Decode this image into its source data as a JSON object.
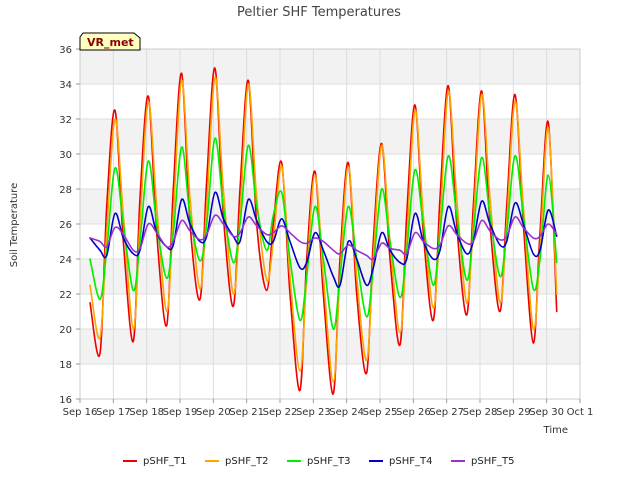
{
  "chart_data": {
    "type": "line",
    "title": "Peltier SHF Temperatures",
    "xlabel": "Time",
    "ylabel": "Soil Temperature",
    "badge": "VR_met",
    "ylim": [
      16,
      36
    ],
    "yticks": [
      16,
      18,
      20,
      22,
      24,
      26,
      28,
      30,
      32,
      34,
      36
    ],
    "xlim": [
      "Sep 16",
      "Oct 1"
    ],
    "xtick_labels": [
      "Sep 16",
      "Sep 17",
      "Sep 18",
      "Sep 19",
      "Sep 20",
      "Sep 21",
      "Sep 22",
      "Sep 23",
      "Sep 24",
      "Sep 25",
      "Sep 26",
      "Sep 27",
      "Sep 28",
      "Sep 29",
      "Sep 30",
      "Oct 1"
    ],
    "grid": true,
    "legend_position": "bottom",
    "x_days": [
      16.3,
      16.6,
      16.8,
      17.05,
      17.3,
      17.6,
      17.8,
      18.05,
      18.3,
      18.6,
      18.8,
      19.05,
      19.3,
      19.6,
      19.8,
      20.05,
      20.3,
      20.6,
      20.8,
      21.05,
      21.3,
      21.6,
      21.8,
      22.05,
      22.3,
      22.6,
      22.8,
      23.05,
      23.3,
      23.6,
      23.8,
      24.05,
      24.3,
      24.6,
      24.8,
      25.05,
      25.3,
      25.6,
      25.8,
      26.05,
      26.3,
      26.6,
      26.8,
      27.05,
      27.3,
      27.6,
      27.8,
      28.05,
      28.3,
      28.6,
      28.8,
      29.05,
      29.3,
      29.6,
      29.8,
      30.05,
      30.3
    ],
    "series": [
      {
        "name": "pSHF_T1",
        "color": "#ee0000",
        "values": [
          21.5,
          18.6,
          27.0,
          32.5,
          25.0,
          19.3,
          27.5,
          33.3,
          25.5,
          20.2,
          28.0,
          34.6,
          26.0,
          21.7,
          28.5,
          34.9,
          26.5,
          21.3,
          28.0,
          34.2,
          26.0,
          22.2,
          26.0,
          29.5,
          22.0,
          16.5,
          24.0,
          29.0,
          22.0,
          16.3,
          24.0,
          29.5,
          22.0,
          17.5,
          25.0,
          30.6,
          24.0,
          19.1,
          26.5,
          32.8,
          25.5,
          20.5,
          27.5,
          33.9,
          26.0,
          20.8,
          27.0,
          33.6,
          26.0,
          21.0,
          27.0,
          33.4,
          26.0,
          19.2,
          25.5,
          31.8,
          21.0
        ]
      },
      {
        "name": "pSHF_T2",
        "color": "#ffa500",
        "values": [
          22.5,
          19.5,
          25.5,
          32.0,
          26.5,
          20.0,
          26.0,
          33.0,
          27.0,
          21.0,
          26.5,
          34.2,
          27.5,
          22.3,
          27.0,
          34.4,
          28.0,
          22.0,
          26.5,
          34.0,
          27.5,
          22.8,
          25.0,
          29.3,
          23.0,
          17.6,
          23.0,
          28.8,
          23.0,
          17.0,
          23.0,
          29.3,
          23.0,
          18.2,
          24.0,
          30.5,
          25.0,
          19.8,
          25.0,
          32.5,
          26.5,
          21.2,
          26.0,
          33.6,
          27.5,
          21.5,
          26.0,
          33.4,
          27.5,
          21.5,
          26.0,
          33.0,
          27.0,
          20.0,
          24.5,
          31.5,
          22.0
        ]
      },
      {
        "name": "pSHF_T3",
        "color": "#00ee00",
        "values": [
          24.0,
          21.7,
          24.5,
          29.2,
          26.0,
          22.2,
          25.0,
          29.6,
          26.0,
          22.9,
          25.5,
          30.4,
          26.5,
          23.9,
          26.0,
          30.9,
          27.0,
          23.8,
          26.0,
          30.5,
          27.0,
          24.5,
          26.5,
          27.8,
          24.0,
          20.5,
          23.0,
          27.0,
          24.0,
          20.0,
          23.0,
          27.0,
          24.0,
          20.7,
          23.5,
          28.0,
          25.0,
          21.8,
          24.5,
          29.1,
          26.0,
          22.5,
          25.5,
          29.9,
          26.5,
          22.8,
          25.5,
          29.8,
          26.5,
          23.0,
          25.5,
          29.9,
          26.5,
          22.3,
          24.0,
          28.8,
          23.8
        ]
      },
      {
        "name": "pSHF_T4",
        "color": "#0000cc",
        "values": [
          25.2,
          24.5,
          24.2,
          26.6,
          25.2,
          24.3,
          24.5,
          27.0,
          25.5,
          24.7,
          24.8,
          27.4,
          26.0,
          25.0,
          25.3,
          27.8,
          26.3,
          25.3,
          25.0,
          27.4,
          26.2,
          25.0,
          25.0,
          26.3,
          25.0,
          23.5,
          23.8,
          25.5,
          24.5,
          23.0,
          22.5,
          25.0,
          24.0,
          22.5,
          23.5,
          25.5,
          24.5,
          23.8,
          24.0,
          26.6,
          25.0,
          24.0,
          24.5,
          27.0,
          25.5,
          24.3,
          25.0,
          27.3,
          26.0,
          24.8,
          25.0,
          27.2,
          26.0,
          24.3,
          24.5,
          26.8,
          25.3
        ]
      },
      {
        "name": "pSHF_T5",
        "color": "#9932cc",
        "values": [
          25.2,
          25.0,
          24.7,
          25.8,
          25.4,
          24.5,
          24.6,
          26.0,
          25.5,
          24.7,
          25.0,
          26.2,
          25.6,
          25.1,
          25.4,
          26.5,
          26.0,
          25.3,
          25.5,
          26.4,
          25.9,
          25.4,
          25.5,
          25.9,
          25.5,
          25.0,
          24.9,
          25.2,
          25.0,
          24.5,
          24.3,
          24.8,
          24.5,
          24.2,
          24.0,
          24.9,
          24.6,
          24.5,
          24.3,
          25.5,
          25.0,
          24.6,
          24.8,
          25.9,
          25.4,
          24.9,
          25.0,
          26.2,
          25.6,
          25.1,
          25.3,
          26.4,
          25.8,
          25.2,
          25.3,
          26.0,
          25.4
        ]
      }
    ]
  }
}
